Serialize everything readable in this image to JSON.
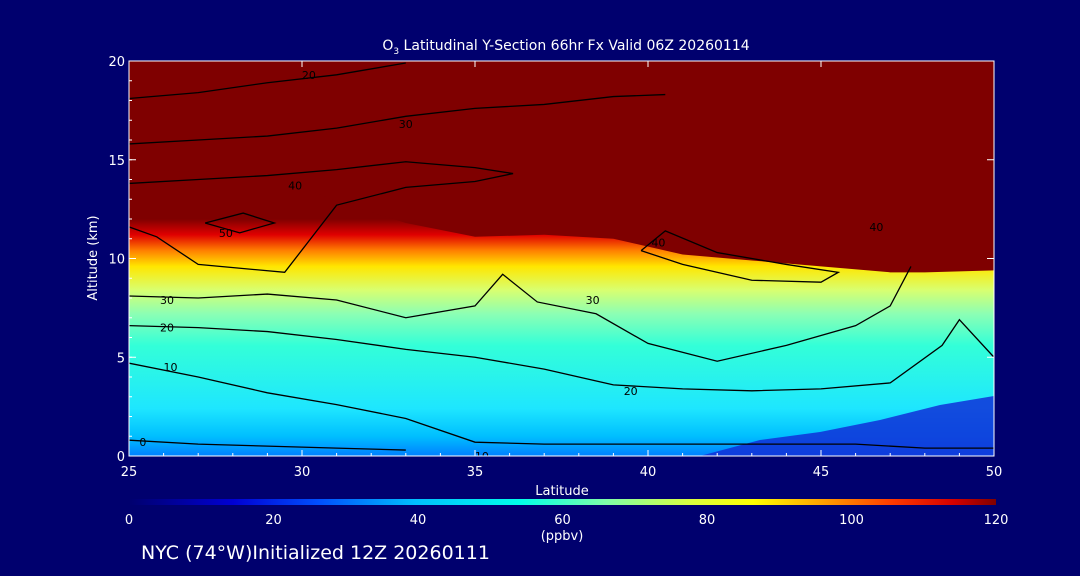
{
  "title": {
    "prefix": "O",
    "subscript": "3",
    "rest": " Latitudinal Y-Section 66hr  Fx Valid 06Z 20260114"
  },
  "footer": "NYC (74°W)Initialized 12Z 20260111",
  "colors": {
    "background": "#00006e",
    "plot_high": "#7f0000"
  },
  "chart_data": {
    "type": "heatmap",
    "title": "O3 Latitudinal Y-Section 66hr  Fx Valid 06Z 20260114",
    "xlabel": "Latitude",
    "ylabel": "Altitude (km)",
    "xlim": [
      25,
      50
    ],
    "ylim": [
      0,
      20
    ],
    "xticks": [
      25,
      30,
      35,
      40,
      45,
      50
    ],
    "yticks": [
      0,
      5,
      10,
      15,
      20
    ],
    "colorbar": {
      "label": "(ppbv)",
      "range": [
        0,
        120
      ],
      "ticks": [
        0,
        20,
        40,
        60,
        80,
        100,
        120
      ]
    },
    "contour_levels": [
      0,
      10,
      20,
      30,
      40,
      50
    ],
    "contour_labels": [
      {
        "text": "20",
        "x": 30.2,
        "y": 19.3
      },
      {
        "text": "30",
        "x": 33.0,
        "y": 16.8
      },
      {
        "text": "40",
        "x": 29.8,
        "y": 13.7
      },
      {
        "text": "50",
        "x": 27.8,
        "y": 11.3
      },
      {
        "text": "40",
        "x": 40.3,
        "y": 10.8
      },
      {
        "text": "40",
        "x": 46.6,
        "y": 11.6
      },
      {
        "text": "30",
        "x": 26.1,
        "y": 7.9
      },
      {
        "text": "20",
        "x": 26.1,
        "y": 6.5
      },
      {
        "text": "10",
        "x": 26.2,
        "y": 4.5
      },
      {
        "text": "30",
        "x": 38.4,
        "y": 7.9
      },
      {
        "text": "20",
        "x": 39.5,
        "y": 3.3
      },
      {
        "text": "0",
        "x": 25.4,
        "y": 0.7
      },
      {
        "text": "10",
        "x": 35.2,
        "y": 0.0
      }
    ],
    "tropopause_km": [
      [
        25,
        14.5
      ],
      [
        27,
        14.4
      ],
      [
        29,
        14.3
      ],
      [
        31,
        12.9
      ],
      [
        33,
        11.8
      ],
      [
        35,
        11.1
      ],
      [
        37,
        11.2
      ],
      [
        39,
        11.0
      ],
      [
        41,
        10.2
      ],
      [
        43,
        9.9
      ],
      [
        45,
        9.6
      ],
      [
        47,
        9.3
      ],
      [
        48,
        9.3
      ],
      [
        50,
        9.4
      ]
    ],
    "contours": [
      {
        "level": 0,
        "points": [
          [
            25,
            0.8
          ],
          [
            27,
            0.6
          ],
          [
            29,
            0.5
          ],
          [
            31,
            0.4
          ],
          [
            33,
            0.3
          ]
        ]
      },
      {
        "level": 10,
        "points": [
          [
            25,
            4.7
          ],
          [
            27,
            4.0
          ],
          [
            29,
            3.2
          ],
          [
            31,
            2.6
          ],
          [
            33,
            1.9
          ],
          [
            35,
            0.7
          ],
          [
            37,
            0.6
          ],
          [
            40,
            0.6
          ],
          [
            43,
            0.6
          ],
          [
            46,
            0.6
          ],
          [
            48,
            0.4
          ],
          [
            50,
            0.4
          ]
        ]
      },
      {
        "level": 20,
        "points": [
          [
            25,
            6.6
          ],
          [
            27,
            6.5
          ],
          [
            29,
            6.3
          ],
          [
            31,
            5.9
          ],
          [
            33,
            5.4
          ],
          [
            35,
            5.0
          ],
          [
            37,
            4.4
          ],
          [
            39,
            3.6
          ],
          [
            41,
            3.4
          ],
          [
            43,
            3.3
          ],
          [
            45,
            3.4
          ],
          [
            47,
            3.7
          ],
          [
            48.5,
            5.6
          ],
          [
            49,
            6.9
          ],
          [
            50,
            5.0
          ]
        ]
      },
      {
        "level": 30,
        "points": [
          [
            25,
            8.1
          ],
          [
            27,
            8.0
          ],
          [
            29,
            8.2
          ],
          [
            31,
            7.9
          ],
          [
            33,
            7.0
          ],
          [
            35,
            7.6
          ],
          [
            35.8,
            9.2
          ],
          [
            36.8,
            7.8
          ],
          [
            38.5,
            7.2
          ],
          [
            40,
            5.7
          ],
          [
            42,
            4.8
          ],
          [
            44,
            5.6
          ],
          [
            46,
            6.6
          ],
          [
            47,
            7.6
          ],
          [
            47.6,
            9.6
          ]
        ]
      },
      {
        "level": 40,
        "points": [
          [
            25,
            13.8
          ],
          [
            27,
            14.0
          ],
          [
            29,
            14.2
          ],
          [
            31,
            14.5
          ],
          [
            33,
            14.9
          ],
          [
            35,
            14.6
          ],
          [
            36.1,
            14.3
          ],
          [
            35.0,
            13.9
          ],
          [
            33,
            13.6
          ],
          [
            31,
            12.7
          ],
          [
            29.5,
            9.3
          ],
          [
            27,
            9.7
          ],
          [
            25.8,
            11.1
          ],
          [
            25,
            11.6
          ]
        ]
      },
      {
        "level": 40,
        "points": [
          [
            39.8,
            10.4
          ],
          [
            41,
            9.7
          ],
          [
            43,
            8.9
          ],
          [
            45,
            8.8
          ],
          [
            45.5,
            9.3
          ],
          [
            44,
            9.7
          ],
          [
            42,
            10.3
          ],
          [
            40.5,
            11.4
          ],
          [
            39.8,
            10.4
          ]
        ]
      },
      {
        "level": 50,
        "points": [
          [
            27.2,
            11.8
          ],
          [
            28.3,
            12.3
          ],
          [
            29.2,
            11.8
          ],
          [
            28.2,
            11.3
          ],
          [
            27.2,
            11.8
          ]
        ]
      },
      {
        "level": 30,
        "points": [
          [
            25,
            15.8
          ],
          [
            27,
            16.0
          ],
          [
            29,
            16.2
          ],
          [
            31,
            16.6
          ],
          [
            33,
            17.2
          ],
          [
            35,
            17.6
          ],
          [
            37,
            17.8
          ],
          [
            39,
            18.2
          ],
          [
            40.5,
            18.3
          ]
        ]
      },
      {
        "level": 20,
        "points": [
          [
            25,
            18.1
          ],
          [
            27,
            18.4
          ],
          [
            29,
            18.9
          ],
          [
            31,
            19.3
          ],
          [
            33,
            19.9
          ]
        ]
      }
    ]
  }
}
